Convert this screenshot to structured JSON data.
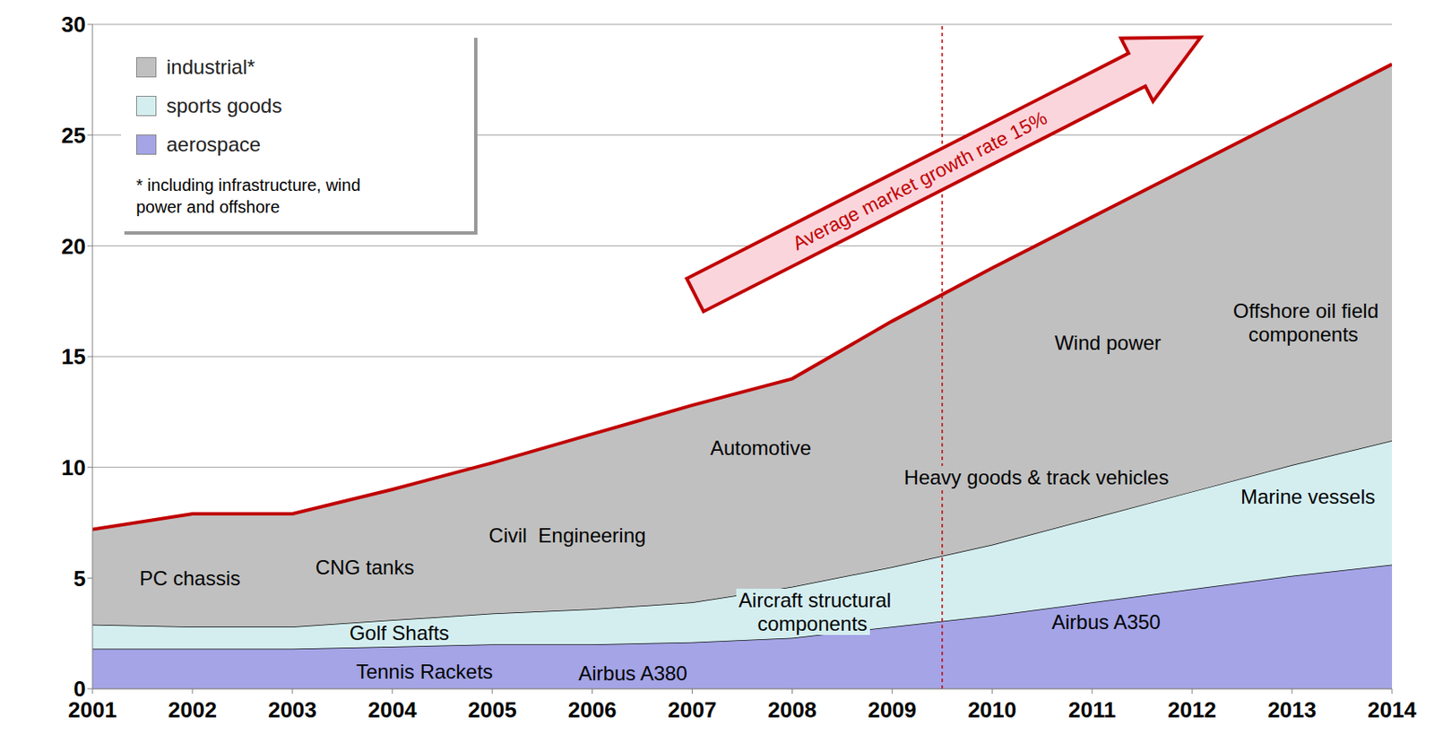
{
  "chart_data": {
    "type": "area",
    "stacked": true,
    "x": [
      2001,
      2002,
      2003,
      2004,
      2005,
      2006,
      2007,
      2008,
      2009,
      2010,
      2011,
      2012,
      2013,
      2014
    ],
    "xlim": [
      2001,
      2014
    ],
    "xticks": [
      2001,
      2002,
      2003,
      2004,
      2005,
      2006,
      2007,
      2008,
      2009,
      2010,
      2011,
      2012,
      2013,
      2014
    ],
    "ylim": [
      0,
      30
    ],
    "yticks": [
      0,
      5,
      10,
      15,
      20,
      25,
      30
    ],
    "grid": true,
    "legend": "top-left",
    "legend_note": "* including infrastructure, wind power and offshore",
    "series": [
      {
        "name": "aerospace",
        "color": "#a4a4e6",
        "values": [
          1.8,
          1.8,
          1.8,
          1.9,
          2.0,
          2.0,
          2.1,
          2.3,
          2.8,
          3.3,
          3.9,
          4.5,
          5.1,
          5.6
        ]
      },
      {
        "name": "sports goods",
        "color": "#d4eef0",
        "values": [
          1.1,
          1.0,
          1.0,
          1.2,
          1.4,
          1.6,
          1.8,
          2.3,
          2.7,
          3.2,
          3.8,
          4.4,
          5.0,
          5.6
        ]
      },
      {
        "name": "industrial*",
        "color": "#c0c0c0",
        "values": [
          4.3,
          5.1,
          5.1,
          5.9,
          6.8,
          7.9,
          8.9,
          9.4,
          11.1,
          12.5,
          13.6,
          14.7,
          15.8,
          17.0
        ]
      }
    ],
    "reference_line": 2009.5,
    "arrow_label": "Average market growth rate 15%",
    "annotations": [
      "PC chassis",
      "CNG tanks",
      "Civil  Engineering",
      "Automotive",
      "Aircraft structural components",
      "Heavy goods & track vehicles",
      "Wind power",
      "Offshore oil field components",
      "Marine vessels",
      "Airbus A350",
      "Golf Shafts",
      "Tennis Rackets",
      "Airbus A380"
    ]
  }
}
